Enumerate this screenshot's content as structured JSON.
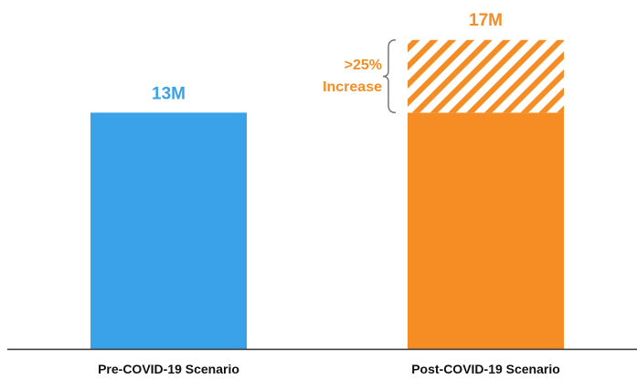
{
  "chart_data": {
    "type": "bar",
    "categories": [
      "Pre-COVID-19 Scenario",
      "Post-COVID-19 Scenario"
    ],
    "values": [
      13,
      17
    ],
    "value_labels": [
      "13M",
      "17M"
    ],
    "unit": "M",
    "baseline_value": 13,
    "ylim": [
      0,
      19.2
    ],
    "grid": false,
    "colors": {
      "pre": "#3aa2e8",
      "post": "#f58d24",
      "axis": "#333333"
    },
    "annotation": {
      "lines": [
        ">25%",
        "Increase"
      ],
      "style": "hatched-increase-with-bracket"
    }
  }
}
